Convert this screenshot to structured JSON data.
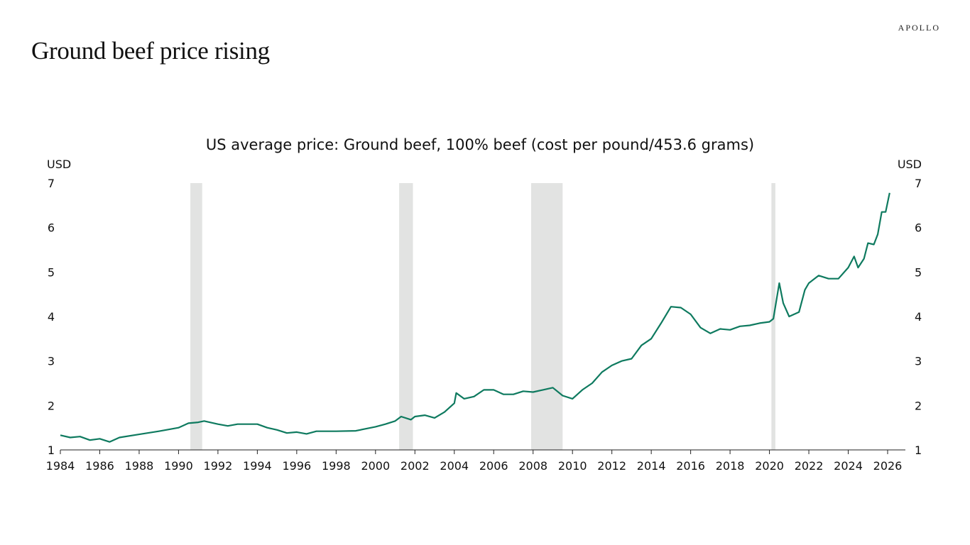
{
  "header": {
    "title": "Ground beef price rising",
    "logo": "APOLLO"
  },
  "chart_data": {
    "type": "line",
    "title": "US average price: Ground beef, 100% beef (cost per pound/453.6 grams)",
    "ylabel_left": "USD",
    "ylabel_right": "USD",
    "xlim": [
      1984,
      2026.5
    ],
    "ylim": [
      1,
      7
    ],
    "xticks": [
      "1984",
      "1986",
      "1988",
      "1990",
      "1992",
      "1994",
      "1996",
      "1998",
      "2000",
      "2002",
      "2004",
      "2006",
      "2008",
      "2010",
      "2012",
      "2014",
      "2016",
      "2018",
      "2020",
      "2022",
      "2024",
      "2026"
    ],
    "yticks": [
      "1",
      "2",
      "3",
      "4",
      "5",
      "6",
      "7"
    ],
    "line_color": "#0e7a5f",
    "recession_color": "#e2e3e2",
    "recessions": [
      [
        1990.6,
        1991.2
      ],
      [
        2001.2,
        2001.9
      ],
      [
        2007.9,
        2009.5
      ],
      [
        2020.1,
        2020.3
      ]
    ],
    "series": [
      {
        "x": [
          1984.0,
          1984.5,
          1985.0,
          1985.5,
          1986.0,
          1986.5,
          1987.0,
          1988.0,
          1989.0,
          1990.0,
          1990.5,
          1991.0,
          1991.3,
          1992.0,
          1992.5,
          1993.0,
          1994.0,
          1994.5,
          1995.0,
          1995.5,
          1996.0,
          1996.5,
          1997.0,
          1998.0,
          1999.0,
          2000.0,
          2000.5,
          2001.0,
          2001.3,
          2001.8,
          2002.0,
          2002.5,
          2003.0,
          2003.5,
          2004.0,
          2004.1,
          2004.5,
          2005.0,
          2005.5,
          2006.0,
          2006.5,
          2007.0,
          2007.5,
          2008.0,
          2008.5,
          2009.0,
          2009.5,
          2010.0,
          2010.5,
          2011.0,
          2011.5,
          2012.0,
          2012.5,
          2013.0,
          2013.5,
          2014.0,
          2014.5,
          2015.0,
          2015.5,
          2016.0,
          2016.5,
          2017.0,
          2017.5,
          2018.0,
          2018.5,
          2019.0,
          2019.5,
          2020.0,
          2020.2,
          2020.5,
          2020.7,
          2021.0,
          2021.5,
          2021.8,
          2022.0,
          2022.5,
          2023.0,
          2023.5,
          2024.0,
          2024.3,
          2024.5,
          2024.8,
          2025.0,
          2025.3,
          2025.5,
          2025.7,
          2025.9,
          2026.1
        ],
        "y": [
          1.33,
          1.28,
          1.3,
          1.22,
          1.25,
          1.18,
          1.28,
          1.35,
          1.42,
          1.5,
          1.6,
          1.62,
          1.65,
          1.58,
          1.54,
          1.58,
          1.58,
          1.5,
          1.45,
          1.38,
          1.4,
          1.36,
          1.42,
          1.42,
          1.43,
          1.52,
          1.58,
          1.65,
          1.75,
          1.68,
          1.75,
          1.78,
          1.72,
          1.85,
          2.05,
          2.28,
          2.15,
          2.2,
          2.35,
          2.35,
          2.25,
          2.25,
          2.32,
          2.3,
          2.35,
          2.4,
          2.22,
          2.15,
          2.35,
          2.5,
          2.75,
          2.9,
          3.0,
          3.05,
          3.35,
          3.5,
          3.85,
          4.22,
          4.2,
          4.05,
          3.75,
          3.62,
          3.72,
          3.7,
          3.78,
          3.8,
          3.85,
          3.88,
          3.95,
          4.75,
          4.3,
          4.0,
          4.1,
          4.6,
          4.75,
          4.92,
          4.85,
          4.85,
          5.1,
          5.35,
          5.1,
          5.3,
          5.65,
          5.62,
          5.85,
          6.35,
          6.35,
          6.78
        ]
      }
    ]
  }
}
